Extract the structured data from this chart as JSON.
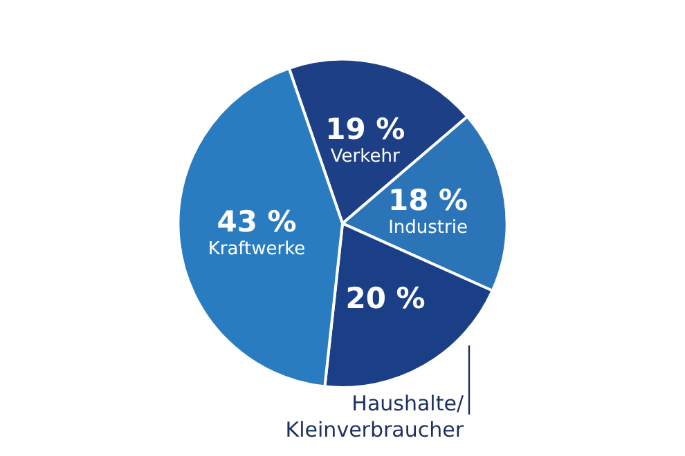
{
  "chart_data": {
    "type": "pie",
    "categories": [
      "Verkehr",
      "Industrie",
      "Haushalte/Kleinverbraucher",
      "Kraftwerke"
    ],
    "values": [
      19,
      18,
      20,
      43
    ],
    "value_labels": [
      "19 %",
      "18 %",
      "20 %",
      "43 %"
    ],
    "colors": [
      "#1c3f86",
      "#2b74b8",
      "#1b3f87",
      "#2a7cc0"
    ]
  }
}
